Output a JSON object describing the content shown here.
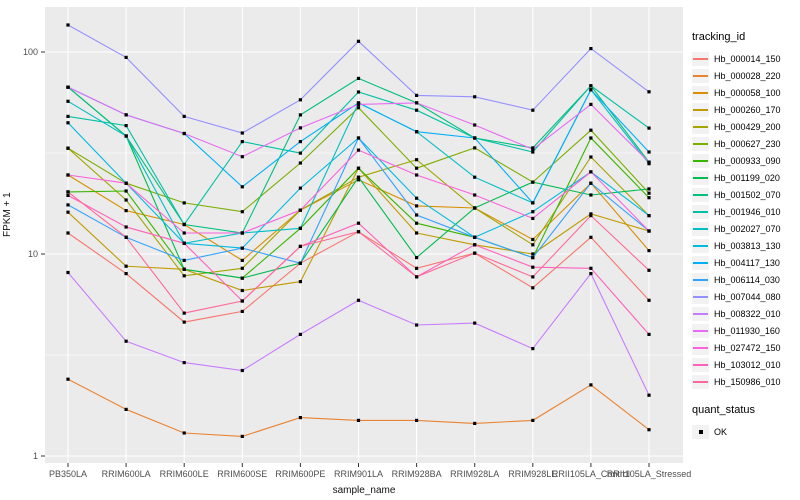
{
  "axes": {
    "y_label": "FPKM + 1",
    "x_label": "sample_name",
    "y_tick_labels": [
      "100",
      "10",
      "1"
    ]
  },
  "legend": {
    "tracking_title": "tracking_id",
    "quant_title": "quant_status",
    "quant_items": [
      {
        "label": "OK",
        "symbol": "black-square-point"
      }
    ]
  },
  "colors": {
    "panel_background": "#EBEBEB",
    "gridline": "#FFFFFF",
    "tick_text": "#4D4D4D",
    "tick_mark": "#333333",
    "point": "#000000",
    "legend_key_background": "#F2F2F2"
  },
  "chart_data": {
    "type": "line",
    "title": "",
    "xlabel": "sample_name",
    "ylabel": "FPKM + 1",
    "y_scale": "log10",
    "ylim": [
      1,
      140
    ],
    "y_ticks": [
      1,
      10,
      100
    ],
    "y_minor_ticks": [
      3.162,
      31.62
    ],
    "grid": true,
    "legend_position": "right",
    "point_marker": "square",
    "categories": [
      "PB350LA",
      "RRIM600LA",
      "RRIM600LE",
      "RRIM600SE",
      "RRIM600PE",
      "RRIM901LA",
      "RRIM928BA",
      "RRIM928LA",
      "RRIM928LE",
      "RRII105LA_Control",
      "RRII105LA_Stressed"
    ],
    "series": [
      {
        "name": "Hb_000014_150",
        "color": "#F8766D",
        "values": [
          12.7,
          8.0,
          4.6,
          5.2,
          9.0,
          12.9,
          8.5,
          10.1,
          6.8,
          12.1,
          5.9
        ]
      },
      {
        "name": "Hb_000028_220",
        "color": "#EA8331",
        "values": [
          2.4,
          1.7,
          1.3,
          1.25,
          1.55,
          1.5,
          1.5,
          1.45,
          1.5,
          2.25,
          1.35
        ]
      },
      {
        "name": "Hb_000058_100",
        "color": "#D89000",
        "values": [
          24.6,
          16.4,
          14.0,
          9.3,
          16.5,
          23.3,
          17.3,
          16.9,
          11.8,
          22.4,
          10.4
        ]
      },
      {
        "name": "Hb_000260_170",
        "color": "#C09B00",
        "values": [
          16.1,
          8.7,
          8.4,
          6.6,
          7.3,
          26.6,
          12.7,
          11.1,
          10.0,
          15.8,
          13.0
        ]
      },
      {
        "name": "Hb_000429_200",
        "color": "#A3A500",
        "values": [
          33.4,
          18.5,
          7.8,
          8.5,
          16.5,
          24.0,
          29.3,
          16.9,
          11.1,
          30.2,
          15.5
        ]
      },
      {
        "name": "Hb_000627_230",
        "color": "#7CAE00",
        "values": [
          33.4,
          22.4,
          17.9,
          16.2,
          28.2,
          53.0,
          26.6,
          33.5,
          22.7,
          41.0,
          20.0
        ]
      },
      {
        "name": "Hb_000933_090",
        "color": "#39B600",
        "values": [
          20.3,
          20.5,
          8.4,
          7.6,
          13.4,
          26.6,
          14.2,
          12.1,
          9.6,
          37.5,
          19.0
        ]
      },
      {
        "name": "Hb_001199_020",
        "color": "#00BB4E",
        "values": [
          67.0,
          38.4,
          8.4,
          7.6,
          9.0,
          24.0,
          9.6,
          16.9,
          22.7,
          19.6,
          21.0
        ]
      },
      {
        "name": "Hb_001502_070",
        "color": "#00BF7D",
        "values": [
          67.0,
          38.4,
          14.0,
          12.7,
          48.8,
          74.0,
          56.0,
          37.5,
          33.5,
          68.0,
          28.5
        ]
      },
      {
        "name": "Hb_001946_010",
        "color": "#00C1A3",
        "values": [
          48.0,
          43.2,
          14.0,
          36.0,
          31.6,
          63.4,
          51.5,
          37.5,
          32.0,
          68.0,
          42.0
        ]
      },
      {
        "name": "Hb_002027_070",
        "color": "#00BFC4",
        "values": [
          57.0,
          38.4,
          11.3,
          12.7,
          13.4,
          56.0,
          40.3,
          24.0,
          17.9,
          65.0,
          28.0
        ]
      },
      {
        "name": "Hb_003813_130",
        "color": "#00BAE0",
        "values": [
          44.6,
          22.4,
          11.3,
          10.7,
          21.2,
          37.5,
          18.9,
          12.1,
          16.2,
          25.5,
          15.5
        ]
      },
      {
        "name": "Hb_004117_130",
        "color": "#00B0F6",
        "values": [
          67.0,
          48.8,
          39.5,
          21.5,
          36.0,
          56.0,
          40.3,
          37.5,
          17.9,
          65.0,
          32.0
        ]
      },
      {
        "name": "Hb_006114_030",
        "color": "#35A2FF",
        "values": [
          17.5,
          12.1,
          9.3,
          10.7,
          9.0,
          37.5,
          15.6,
          12.1,
          9.6,
          22.4,
          13.0
        ]
      },
      {
        "name": "Hb_007044_080",
        "color": "#9590FF",
        "values": [
          136,
          94,
          48,
          39.7,
          58,
          113,
          61,
          60,
          51.5,
          104,
          63.5
        ]
      },
      {
        "name": "Hb_008322_010",
        "color": "#C77CFF",
        "values": [
          8.1,
          3.7,
          2.9,
          2.65,
          4.0,
          5.9,
          4.45,
          4.55,
          3.4,
          8.0,
          2.0
        ]
      },
      {
        "name": "Hb_011930_160",
        "color": "#E76BF3",
        "values": [
          67.0,
          48.8,
          39.5,
          30.3,
          42.1,
          55.0,
          56.0,
          43.5,
          33.0,
          55.0,
          28.5
        ]
      },
      {
        "name": "Hb_027472_150",
        "color": "#FA62DB",
        "values": [
          24.6,
          22.4,
          12.7,
          12.7,
          16.5,
          32.7,
          24.6,
          19.6,
          15.0,
          25.5,
          13.0
        ]
      },
      {
        "name": "Hb_103012_010",
        "color": "#FF62BC",
        "values": [
          19.5,
          13.6,
          11.3,
          5.85,
          10.9,
          14.2,
          7.7,
          11.1,
          8.6,
          8.5,
          4.0
        ]
      },
      {
        "name": "Hb_150986_010",
        "color": "#FF6A98",
        "values": [
          20.3,
          12.1,
          5.1,
          5.85,
          10.9,
          12.9,
          7.7,
          10.1,
          7.7,
          15.5,
          8.3
        ]
      }
    ]
  }
}
